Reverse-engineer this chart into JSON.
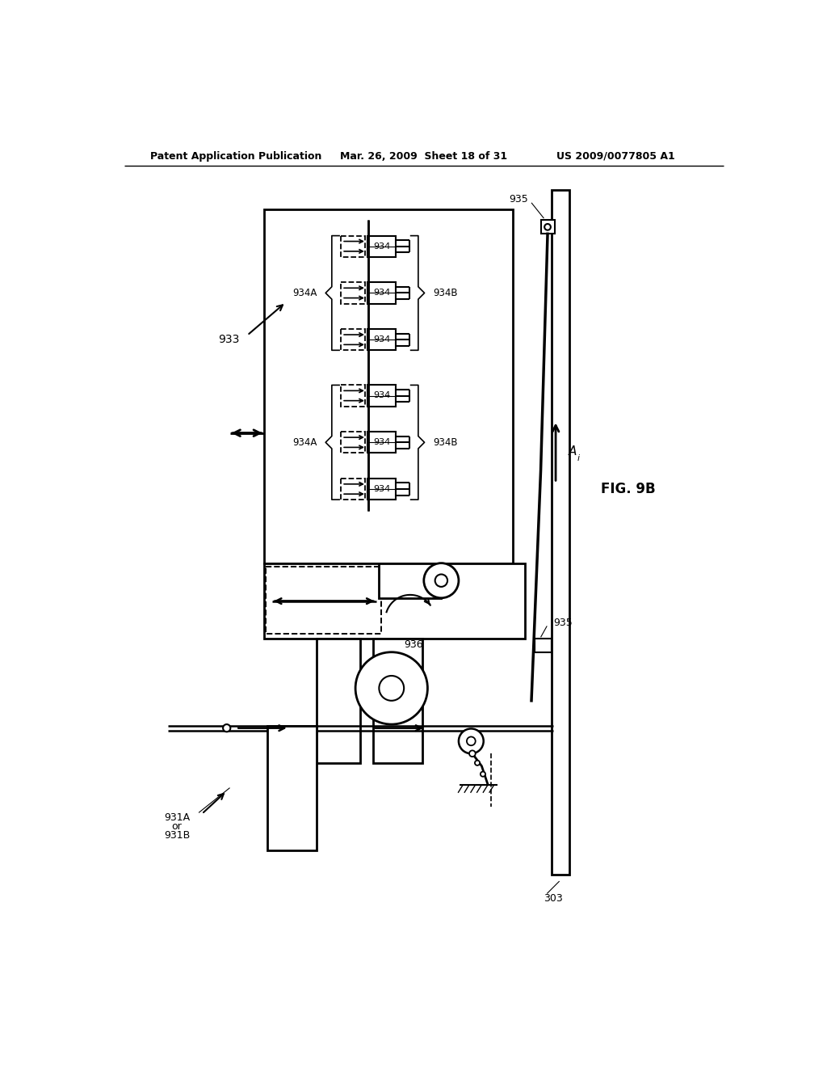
{
  "header_left": "Patent Application Publication",
  "header_center": "Mar. 26, 2009  Sheet 18 of 31",
  "header_right": "US 2009/0077805 A1",
  "fig_label": "FIG. 9B",
  "bg": "#ffffff",
  "lc": "#000000",
  "labels": {
    "933": "933",
    "934": "934",
    "934A": "934A",
    "934B": "934B",
    "935": "935",
    "936": "936",
    "303": "303",
    "Ai": "A",
    "931A": "931A",
    "931B": "931B",
    "or": "or"
  }
}
